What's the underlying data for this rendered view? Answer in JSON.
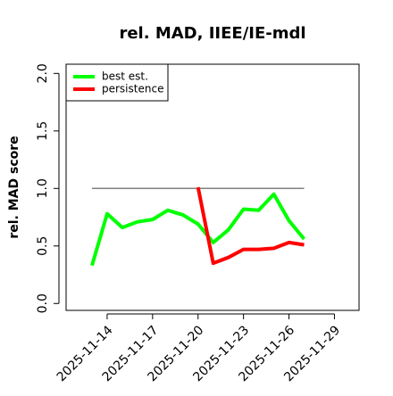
{
  "chart_data": {
    "type": "line",
    "title": "rel. MAD, IIEE/IE-mdl",
    "y_label": "rel. MAD score",
    "x": [
      "2025-11-13",
      "2025-11-14",
      "2025-11-15",
      "2025-11-16",
      "2025-11-17",
      "2025-11-18",
      "2025-11-19",
      "2025-11-20",
      "2025-11-21",
      "2025-11-22",
      "2025-11-23",
      "2025-11-24",
      "2025-11-25",
      "2025-11-26",
      "2025-11-27"
    ],
    "series": [
      {
        "name": "best est.",
        "color": "#00ff00",
        "values": [
          0.33,
          0.78,
          0.66,
          0.71,
          0.73,
          0.81,
          0.77,
          0.69,
          0.53,
          0.64,
          0.82,
          0.81,
          0.95,
          0.72,
          0.56
        ]
      },
      {
        "name": "persistence",
        "color": "#ff0000",
        "values": [
          null,
          null,
          null,
          null,
          null,
          null,
          null,
          1.01,
          0.35,
          0.4,
          0.47,
          0.47,
          0.48,
          0.53,
          0.51
        ]
      }
    ],
    "reference": {
      "y": 1,
      "x": [
        "2025-11-13",
        "2025-11-27"
      ],
      "color": "#808080"
    },
    "xlim": [
      "2025-11-11T07:00",
      "2025-11-30T15:00"
    ],
    "xticks": [
      "2025-11-14",
      "2025-11-17",
      "2025-11-20",
      "2025-11-23",
      "2025-11-26",
      "2025-11-29"
    ],
    "ylim": [
      -0.06,
      2.08
    ],
    "yticks": [
      {
        "value": 0,
        "label": "0.0"
      },
      0.5,
      {
        "value": 1,
        "label": "1.0"
      },
      1.5,
      {
        "value": 2,
        "label": "2.0"
      }
    ],
    "legend": "top-left"
  }
}
